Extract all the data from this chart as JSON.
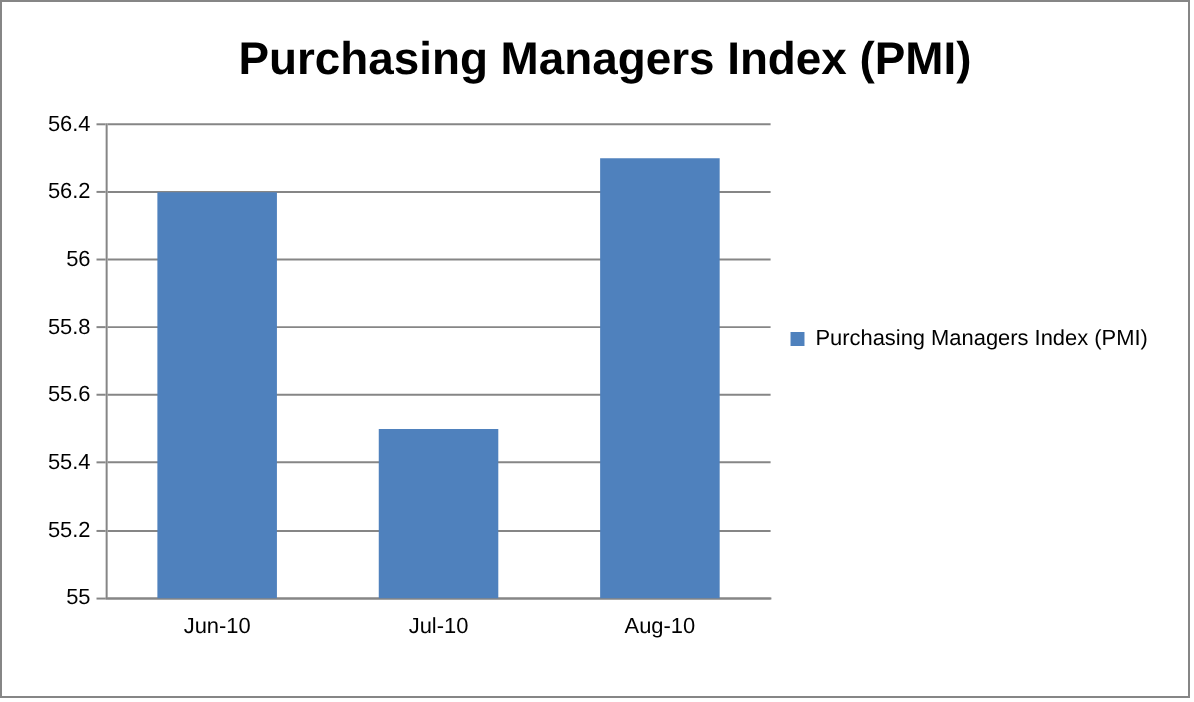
{
  "chart_data": {
    "type": "bar",
    "title": "Purchasing Managers Index (PMI)",
    "categories": [
      "Jun-10",
      "Jul-10",
      "Aug-10"
    ],
    "series": [
      {
        "name": "Purchasing Managers Index (PMI)",
        "color": "#4f81bd",
        "values": [
          56.2,
          55.5,
          56.3
        ]
      }
    ],
    "ylim": [
      55,
      56.4
    ],
    "yticks": [
      55,
      55.2,
      55.4,
      55.6,
      55.8,
      56,
      56.2,
      56.4
    ],
    "grid": "y",
    "legend": "right"
  }
}
